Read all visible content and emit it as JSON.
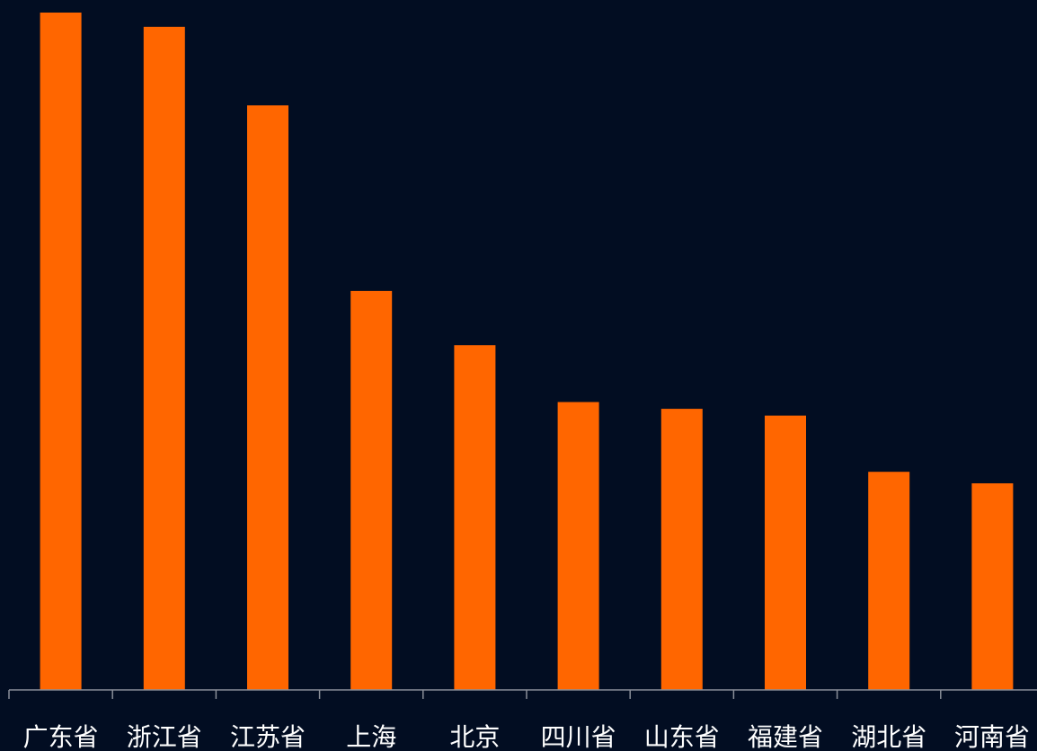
{
  "chart_data": {
    "type": "bar",
    "categories": [
      "广东省",
      "浙江省",
      "江苏省",
      "上海",
      "北京",
      "四川省",
      "山东省",
      "福建省",
      "湖北省",
      "河南省"
    ],
    "values": [
      100,
      97.9,
      86.3,
      58.9,
      50.9,
      42.5,
      41.5,
      40.5,
      32.2,
      30.5
    ],
    "ylim": [
      0,
      100
    ],
    "title": "",
    "xlabel": "",
    "ylabel": "",
    "grid": false,
    "legend": "none",
    "colors": {
      "bar": "#ff6600",
      "background": "#020d22",
      "axis": "#8a8f99",
      "label": "#ffffff"
    }
  }
}
